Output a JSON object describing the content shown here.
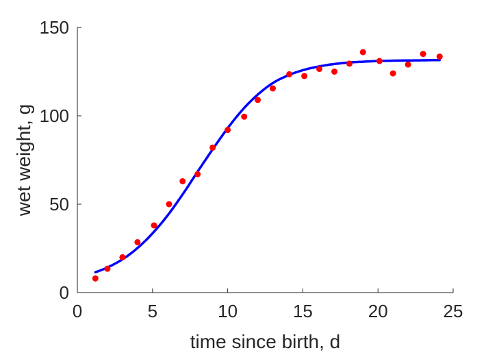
{
  "chart_data": {
    "type": "scatter",
    "title": "",
    "xlabel": "time since birth, d",
    "ylabel": "wet weight, g",
    "xlim": [
      0,
      25
    ],
    "ylim": [
      0,
      150
    ],
    "xticks": [
      0,
      5,
      10,
      15,
      20,
      25
    ],
    "yticks": [
      0,
      50,
      100,
      150
    ],
    "xtick_labels": [
      "0",
      "5",
      "10",
      "15",
      "20",
      "25"
    ],
    "ytick_labels": [
      "0",
      "50",
      "100",
      "150"
    ],
    "grid": false,
    "legend": "none",
    "series": [
      {
        "type": "scatter",
        "color": "#ff0000",
        "x": [
          1.2,
          2.0,
          3.0,
          4.0,
          5.1,
          6.1,
          7.0,
          8.0,
          9.0,
          10.0,
          11.1,
          12.0,
          13.0,
          14.1,
          15.1,
          16.1,
          17.1,
          18.1,
          19.0,
          20.1,
          21.0,
          22.0,
          23.0,
          24.1
        ],
        "y": [
          8,
          13.5,
          20,
          28.5,
          38,
          50,
          63,
          67,
          82,
          92,
          99.5,
          109,
          115.5,
          123.5,
          122.5,
          126.5,
          125,
          129.5,
          136,
          131,
          124,
          129,
          135,
          133.5
        ]
      },
      {
        "type": "line",
        "color": "#0000ff",
        "x": [
          1.2,
          2,
          3,
          4,
          5,
          6,
          7,
          8,
          9,
          10,
          11,
          12,
          13,
          14,
          15,
          16,
          17,
          18,
          19,
          20,
          21,
          22,
          23,
          24.1
        ],
        "y": [
          11.5,
          14.2,
          18.8,
          25.2,
          33.5,
          43.6,
          55.5,
          68.4,
          81,
          93,
          103.5,
          112,
          118.5,
          122.8,
          125.8,
          127.8,
          129.2,
          130.1,
          130.6,
          131,
          131.2,
          131.3,
          131.4,
          131.5
        ]
      }
    ]
  }
}
